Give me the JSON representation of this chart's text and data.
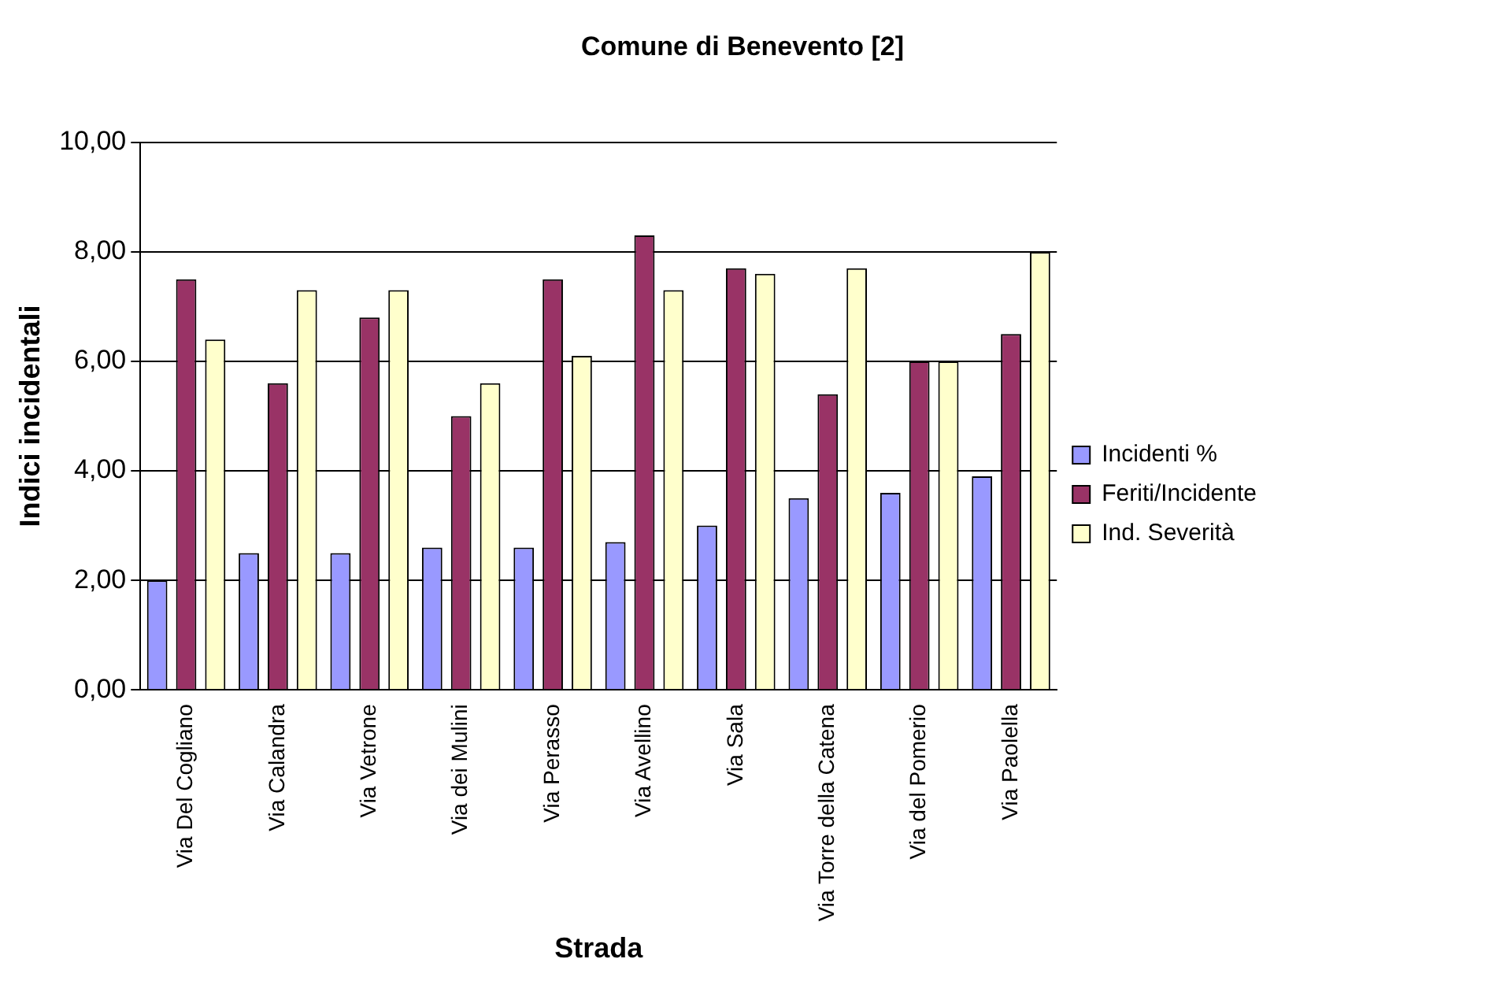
{
  "chart_data": {
    "type": "bar",
    "title": "Comune di Benevento [2]",
    "xlabel": "Strada",
    "ylabel": "Indici incidentali",
    "categories": [
      "Via Del Cogliano",
      "Via Calandra",
      "Via Vetrone",
      "Via dei Mulini",
      "Via Perasso",
      "Via Avellino",
      "Via Sala",
      "Via Torre della Catena",
      "Via del Pomerio",
      "Via Paolella"
    ],
    "series": [
      {
        "name": "Incidenti %",
        "color": "#9999ff",
        "values": [
          2.0,
          2.5,
          2.5,
          2.6,
          2.6,
          2.7,
          3.0,
          3.5,
          3.6,
          3.9
        ]
      },
      {
        "name": "Feriti/Incidente",
        "color": "#993366",
        "values": [
          7.5,
          5.6,
          6.8,
          5.0,
          7.5,
          8.3,
          7.7,
          5.4,
          6.0,
          6.5
        ]
      },
      {
        "name": "Ind. Severità",
        "color": "#ffffcc",
        "values": [
          6.4,
          7.3,
          7.3,
          5.6,
          6.1,
          7.3,
          7.6,
          7.7,
          6.0,
          8.0
        ]
      }
    ],
    "ylim": [
      0,
      10
    ],
    "yticks": [
      {
        "value": 0,
        "label": "0,00"
      },
      {
        "value": 2,
        "label": "2,00"
      },
      {
        "value": 4,
        "label": "4,00"
      },
      {
        "value": 6,
        "label": "6,00"
      },
      {
        "value": 8,
        "label": "8,00"
      },
      {
        "value": 10,
        "label": "10,00"
      }
    ],
    "grid": "y",
    "legend": "right"
  }
}
